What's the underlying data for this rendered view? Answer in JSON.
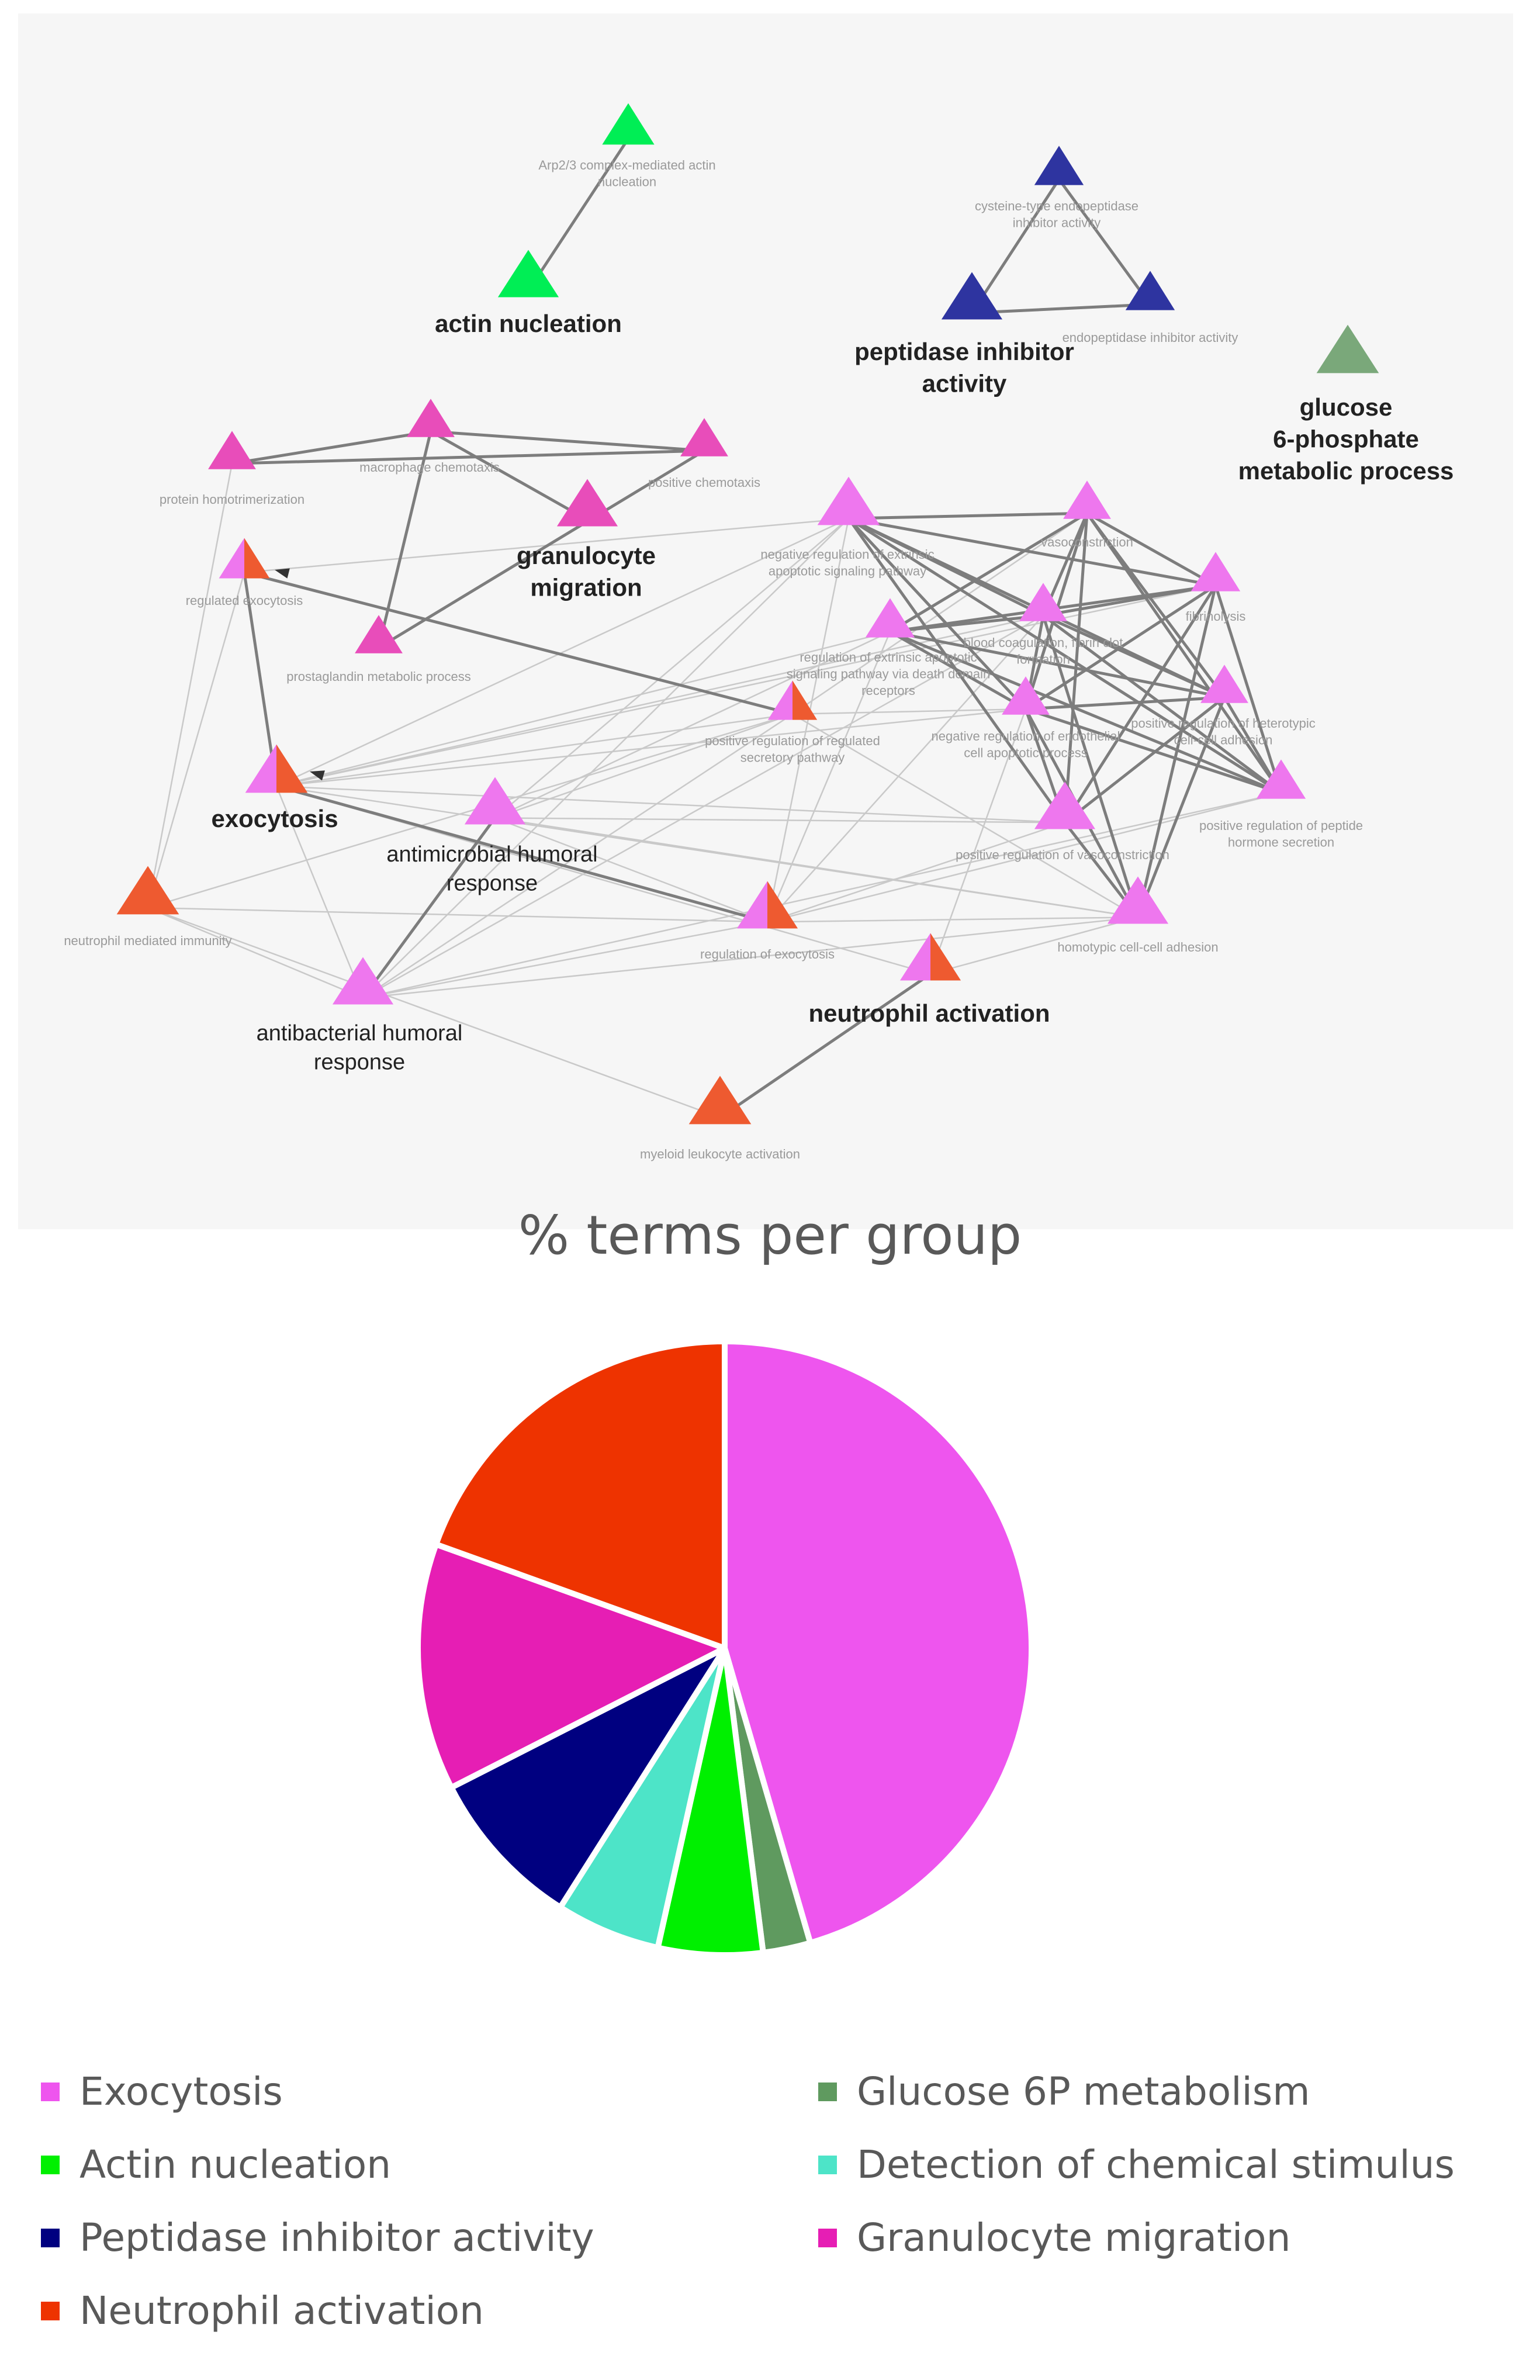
{
  "network": {
    "colors": {
      "Exocytosis": "#ee77ee",
      "Actin nucleation": "#00ee55",
      "Peptidase inhibitor activity": "#2e34a0",
      "Neutrophil activation": "#ee5a30",
      "Glucose 6P metabolism": "#7aa87a",
      "Granulocyte migration": "#e84dba"
    },
    "nodes": [
      {
        "id": "arp23",
        "label": "Arp2/3 complex-mediated actin nucleation",
        "group": "Actin nucleation",
        "bold": false
      },
      {
        "id": "actin",
        "label": "actin nucleation",
        "group": "Actin nucleation",
        "bold": true
      },
      {
        "id": "cyst",
        "label": "cysteine-type endopeptidase inhibitor activity",
        "group": "Peptidase inhibitor activity",
        "bold": false
      },
      {
        "id": "pepinh",
        "label": "peptidase inhibitor activity",
        "group": "Peptidase inhibitor activity",
        "bold": true
      },
      {
        "id": "endopep",
        "label": "endopeptidase inhibitor activity",
        "group": "Peptidase inhibitor activity",
        "bold": false
      },
      {
        "id": "glucose",
        "label": "glucose 6-phosphate metabolic process",
        "group": "Glucose 6P metabolism",
        "bold": true
      },
      {
        "id": "protho",
        "label": "protein homotrimerization",
        "group": "Granulocyte migration",
        "bold": false
      },
      {
        "id": "macro",
        "label": "macrophage chemotaxis",
        "group": "Granulocyte migration",
        "bold": false
      },
      {
        "id": "poschem",
        "label": "positive chemotaxis",
        "group": "Granulocyte migration",
        "bold": false
      },
      {
        "id": "granmig",
        "label": "granulocyte migration",
        "group": "Granulocyte migration",
        "bold": true
      },
      {
        "id": "prosta",
        "label": "prostaglandin metabolic process",
        "group": "Granulocyte migration",
        "bold": false
      },
      {
        "id": "regexo",
        "label": "regulated exocytosis",
        "group": "Exocytosis+Neutrophil activation",
        "bold": false
      },
      {
        "id": "exo",
        "label": "exocytosis",
        "group": "Exocytosis+Neutrophil activation",
        "bold": true
      },
      {
        "id": "neutimm",
        "label": "neutrophil mediated immunity",
        "group": "Neutrophil activation",
        "bold": false
      },
      {
        "id": "antimic",
        "label": "antimicrobial humoral response",
        "group": "Exocytosis",
        "bold": false
      },
      {
        "id": "antibac",
        "label": "antibacterial humoral response",
        "group": "Exocytosis",
        "bold": false
      },
      {
        "id": "negapop",
        "label": "negative regulation of extrinsic apoptotic signaling pathway",
        "group": "Exocytosis",
        "bold": false
      },
      {
        "id": "regextr",
        "label": "regulation of extrinsic apoptotic signaling pathway via death domain receptors",
        "group": "Exocytosis",
        "bold": false
      },
      {
        "id": "vaso",
        "label": "vasoconstriction",
        "group": "Exocytosis",
        "bold": false
      },
      {
        "id": "fibrin",
        "label": "fibrinolysis",
        "group": "Exocytosis",
        "bold": false
      },
      {
        "id": "blood",
        "label": "blood coagulation, fibrin clot formation",
        "group": "Exocytosis",
        "bold": false
      },
      {
        "id": "negendo",
        "label": "negative regulation of endothelial cell apoptotic process",
        "group": "Exocytosis",
        "bold": false
      },
      {
        "id": "poshet",
        "label": "positive regulation of heterotypic cell-cell adhesion",
        "group": "Exocytosis",
        "bold": false
      },
      {
        "id": "pospep",
        "label": "positive regulation of peptide hormone secretion",
        "group": "Exocytosis",
        "bold": false
      },
      {
        "id": "posvaso",
        "label": "positive regulation of vasoconstriction",
        "group": "Exocytosis",
        "bold": false
      },
      {
        "id": "homotyp",
        "label": "homotypic cell-cell adhesion",
        "group": "Exocytosis",
        "bold": false
      },
      {
        "id": "posregsec",
        "label": "positive regulation of regulated secretory pathway",
        "group": "Exocytosis+Neutrophil activation",
        "bold": false
      },
      {
        "id": "regexoc",
        "label": "regulation of exocytosis",
        "group": "Exocytosis+Neutrophil activation",
        "bold": false
      },
      {
        "id": "neutact",
        "label": "neutrophil activation",
        "group": "Exocytosis+Neutrophil activation",
        "bold": true
      },
      {
        "id": "myeloid",
        "label": "myeloid leukocyte activation",
        "group": "Neutrophil activation",
        "bold": false
      }
    ],
    "display_labels": {
      "arp23": [
        "Arp2/3 complex-mediated actin",
        "nucleation"
      ],
      "actin": [
        "actin nucleation"
      ],
      "cyst": [
        "cysteine-type endopeptidase",
        "inhibitor activity"
      ],
      "pepinh": [
        "peptidase inhibitor",
        "activity"
      ],
      "endopep": [
        "endopeptidase inhibitor activity"
      ],
      "glucose": [
        "glucose",
        "6-phosphate",
        "metabolic process"
      ],
      "protho": [
        "protein homotrimerization"
      ],
      "macro": [
        "macrophage chemotaxis"
      ],
      "poschem": [
        "positive chemotaxis"
      ],
      "granmig": [
        "granulocyte",
        "migration"
      ],
      "prosta": [
        "prostaglandin metabolic process"
      ],
      "regexo": [
        "regulated exocytosis"
      ],
      "exo": [
        "exocytosis"
      ],
      "neutimm": [
        "neutrophil mediated immunity"
      ],
      "antimic": [
        "antimicrobial humoral",
        "response"
      ],
      "antibac": [
        "antibacterial humoral",
        "response"
      ],
      "negapop": [
        "negative regulation of extrinsic",
        "apoptotic signaling pathway"
      ],
      "regextr": [
        "regulation of extrinsic apoptotic",
        "signaling pathway via death domain",
        "receptors"
      ],
      "vaso": [
        "vasoconstriction"
      ],
      "fibrin": [
        "fibrinolysis"
      ],
      "blood": [
        "blood coagulation, fibrin clot",
        "formation"
      ],
      "negendo": [
        "negative regulation of endothelial",
        "cell apoptotic process"
      ],
      "poshet": [
        "positive regulation of heterotypic",
        "cell-cell adhesion"
      ],
      "pospep": [
        "positive regulation of peptide",
        "hormone secretion"
      ],
      "posvaso": [
        "positive regulation of vasoconstriction"
      ],
      "homotyp": [
        "homotypic cell-cell adhesion"
      ],
      "posregsec": [
        "positive regulation of regulated",
        "secretory pathway"
      ],
      "regexoc": [
        "regulation of exocytosis"
      ],
      "neutact": [
        "neutrophil activation"
      ],
      "myeloid": [
        "myeloid leukocyte activation"
      ]
    }
  },
  "chart_data": {
    "type": "pie",
    "title": "% terms per group",
    "categories": [
      "Exocytosis",
      "Glucose 6P metabolism",
      "Actin nucleation",
      "Detection of chemical stimulus",
      "Peptidase inhibitor activity",
      "Granulocyte migration",
      "Neutrophil activation"
    ],
    "values": [
      45.5,
      2.5,
      5.5,
      5.5,
      8.5,
      13.0,
      19.5
    ],
    "colors": [
      "#ee55ee",
      "#5f9a5f",
      "#00f000",
      "#4de4c8",
      "#000080",
      "#e61eb4",
      "#ee3300"
    ],
    "start_angle_deg": 0,
    "direction": "clockwise",
    "legend_position": "bottom",
    "legend": [
      {
        "label": "Exocytosis",
        "color": "#ee55ee"
      },
      {
        "label": "Glucose 6P metabolism",
        "color": "#5f9a5f"
      },
      {
        "label": "Actin nucleation",
        "color": "#00f000"
      },
      {
        "label": "Detection of chemical stimulus",
        "color": "#4de4c8"
      },
      {
        "label": "Peptidase inhibitor activity",
        "color": "#000080"
      },
      {
        "label": "Granulocyte migration",
        "color": "#e61eb4"
      },
      {
        "label": "Neutrophil activation",
        "color": "#ee3300"
      }
    ]
  }
}
